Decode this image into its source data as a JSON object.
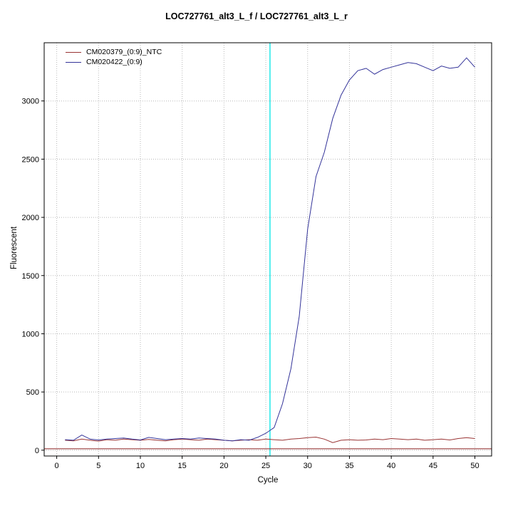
{
  "chart_data": {
    "type": "line",
    "title": "LOC727761_alt3_L_f / LOC727761_alt3_L_r",
    "xlabel": "Cycle",
    "ylabel": "Fluorescent",
    "xlim": [
      -1.5,
      52
    ],
    "ylim": [
      -50,
      3500
    ],
    "x_ticks": [
      0,
      5,
      10,
      15,
      20,
      25,
      30,
      35,
      40,
      45,
      50
    ],
    "y_ticks": [
      0,
      500,
      1000,
      1500,
      2000,
      2500,
      3000
    ],
    "grid": "dotted",
    "grid_color": "#b8b8b8",
    "legend_position": "top-left",
    "x": [
      1,
      2,
      3,
      4,
      5,
      6,
      7,
      8,
      9,
      10,
      11,
      12,
      13,
      14,
      15,
      16,
      17,
      18,
      19,
      20,
      21,
      22,
      23,
      24,
      25,
      26,
      27,
      28,
      29,
      30,
      31,
      32,
      33,
      34,
      35,
      36,
      37,
      38,
      39,
      40,
      41,
      42,
      43,
      44,
      45,
      46,
      47,
      48,
      49,
      50
    ],
    "series": [
      {
        "name": "CM020379_(0:9)_NTC",
        "color": "#993333",
        "values": [
          85,
          80,
          95,
          85,
          78,
          90,
          85,
          95,
          90,
          85,
          92,
          85,
          80,
          90,
          95,
          90,
          85,
          95,
          90,
          85,
          80,
          85,
          90,
          85,
          95,
          90,
          85,
          95,
          100,
          108,
          112,
          95,
          65,
          85,
          90,
          85,
          88,
          95,
          90,
          100,
          95,
          90,
          95,
          85,
          90,
          95,
          88,
          100,
          108,
          100
        ]
      },
      {
        "name": "CM020422_(0:9)",
        "color": "#333399",
        "values": [
          90,
          85,
          130,
          95,
          88,
          95,
          100,
          105,
          95,
          88,
          110,
          100,
          90,
          95,
          100,
          95,
          105,
          100,
          95,
          85,
          80,
          90,
          85,
          110,
          145,
          195,
          400,
          700,
          1150,
          1900,
          2350,
          2560,
          2850,
          3050,
          3180,
          3260,
          3280,
          3230,
          3270,
          3290,
          3310,
          3330,
          3320,
          3290,
          3260,
          3300,
          3280,
          3290,
          3370,
          3290
        ]
      }
    ],
    "annotations": {
      "ct_line_x": 25.5,
      "ct_line_color": "#00e5e5",
      "threshold_line_y": 12,
      "threshold_line_color": "#8b2222"
    }
  }
}
